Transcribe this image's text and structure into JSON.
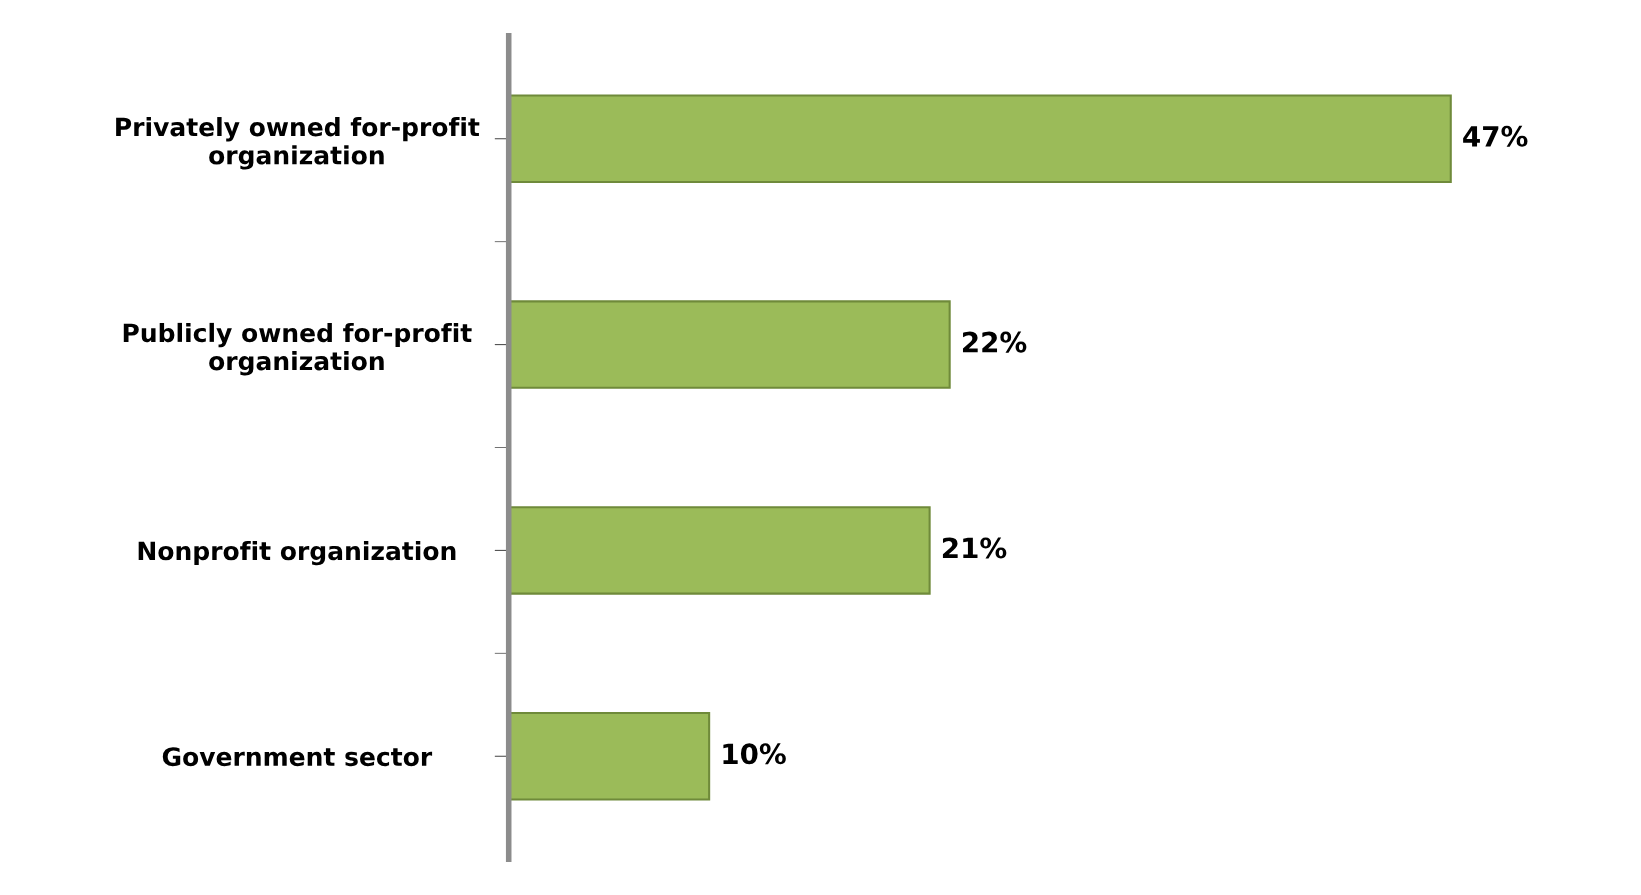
{
  "chart_data": {
    "type": "bar",
    "orientation": "horizontal",
    "categories": [
      "Privately owned for-profit\norganization",
      "Publicly owned for-profit\norganization",
      "Nonprofit organization",
      "Government sector"
    ],
    "values": [
      47,
      22,
      21,
      10
    ],
    "value_labels": [
      "47%",
      "22%",
      "21%",
      "10%"
    ],
    "color": "#9bbb59",
    "grid": false,
    "legend": false
  }
}
